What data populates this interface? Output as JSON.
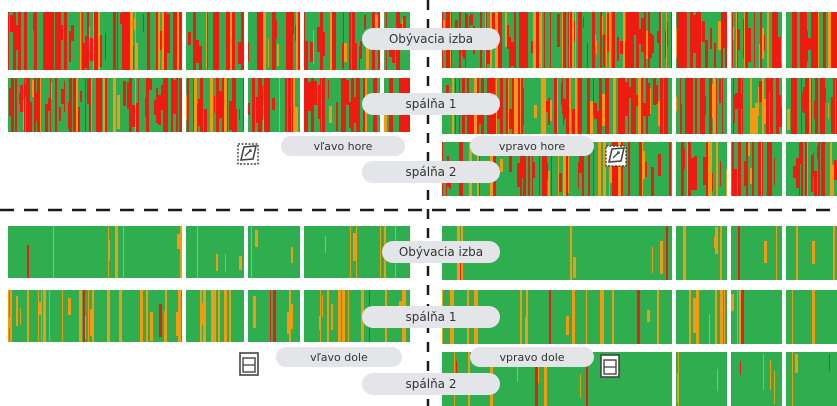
{
  "colors": {
    "red": "#ee1c10",
    "green": "#2fae4f",
    "orange": "#f29a12",
    "divider": "#1a1a1a"
  },
  "top_half": {
    "labels": {
      "row1": "Obývacia izba",
      "row2": "spálňa 1",
      "row3": "spálňa 2",
      "left_corner": "vľavo hore",
      "right_corner": "vpravo hore"
    },
    "icon": "roof-window-icon"
  },
  "bottom_half": {
    "labels": {
      "row1": "Obývacia izba",
      "row2": "spálňa 1",
      "row3": "spálňa 2",
      "left_corner": "vľavo dole",
      "right_corner": "vpravo dole"
    },
    "icon": "wall-window-icon"
  }
}
